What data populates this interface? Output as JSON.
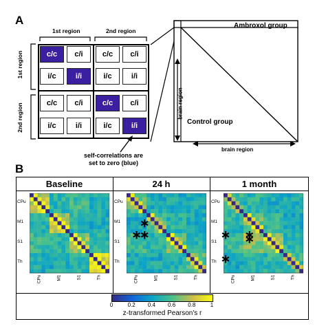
{
  "panel_a": {
    "letter": "A",
    "top_headers": [
      "1st region",
      "2nd region"
    ],
    "side_headers": [
      "1st region",
      "2nd region"
    ],
    "matrix": [
      [
        "c/c",
        "c/i",
        "c/c",
        "c/i"
      ],
      [
        "i/c",
        "i/i",
        "i/c",
        "i/i"
      ],
      [
        "c/c",
        "c/i",
        "c/c",
        "c/i"
      ],
      [
        "i/c",
        "i/i",
        "i/c",
        "i/i"
      ]
    ],
    "self_color": "#3a1fa0",
    "note_line1": "self-correlations are",
    "note_line2": "set to zero (blue)",
    "ambroxol_label": "Ambroxol group",
    "control_label": "Control group",
    "axis_y": "brain region",
    "axis_x": "brain region"
  },
  "panel_b": {
    "letter": "B",
    "titles": [
      "Baseline",
      "24 h",
      "1 month"
    ],
    "row_labels": [
      "CPu",
      "M1",
      "S1",
      "Th"
    ],
    "col_labels": [
      "CPu",
      "M1",
      "S1",
      "Th"
    ],
    "colorbar": {
      "ticks": [
        "0",
        "0.2",
        "0.4",
        "0.6",
        "0.8",
        "1"
      ],
      "label": "z-transformed Pearson's r",
      "colors": [
        "#352a87",
        "#1364d9",
        "#0da5c5",
        "#4ac18a",
        "#cbbd4b",
        "#f9fb0e"
      ]
    }
  },
  "chart_data": [
    {
      "type": "heatmap",
      "title": "Baseline",
      "size": 20,
      "row_labels": [
        "CPu",
        "M1",
        "S1",
        "Th"
      ],
      "col_labels": [
        "CPu",
        "M1",
        "S1",
        "Th"
      ],
      "range": [
        0,
        1
      ],
      "diagonal": "self-correlations set to zero",
      "blocks": [
        [
          0.8,
          0.5,
          0.55,
          0.45
        ],
        [
          0.5,
          0.75,
          0.5,
          0.45
        ],
        [
          0.55,
          0.5,
          0.72,
          0.5
        ],
        [
          0.45,
          0.45,
          0.5,
          0.85
        ]
      ],
      "stars": []
    },
    {
      "type": "heatmap",
      "title": "24 h",
      "size": 20,
      "row_labels": [
        "CPu",
        "M1",
        "S1",
        "Th"
      ],
      "col_labels": [
        "CPu",
        "M1",
        "S1",
        "Th"
      ],
      "range": [
        0,
        1
      ],
      "diagonal": "self-correlations set to zero",
      "blocks": [
        [
          0.6,
          0.45,
          0.45,
          0.45
        ],
        [
          0.45,
          0.6,
          0.5,
          0.45
        ],
        [
          0.55,
          0.5,
          0.65,
          0.5
        ],
        [
          0.45,
          0.45,
          0.5,
          0.6
        ]
      ],
      "stars": [
        [
          7,
          4
        ],
        [
          10,
          2
        ],
        [
          10,
          4
        ]
      ]
    },
    {
      "type": "heatmap",
      "title": "1 month",
      "size": 20,
      "row_labels": [
        "CPu",
        "M1",
        "S1",
        "Th"
      ],
      "col_labels": [
        "CPu",
        "M1",
        "S1",
        "Th"
      ],
      "range": [
        0,
        1
      ],
      "diagonal": "self-correlations set to zero",
      "blocks": [
        [
          0.55,
          0.5,
          0.45,
          0.45
        ],
        [
          0.5,
          0.65,
          0.55,
          0.45
        ],
        [
          0.55,
          0.7,
          0.7,
          0.5
        ],
        [
          0.45,
          0.5,
          0.5,
          0.55
        ]
      ],
      "stars": [
        [
          10,
          0
        ],
        [
          10,
          6
        ],
        [
          11,
          6
        ],
        [
          16,
          0
        ]
      ]
    }
  ]
}
